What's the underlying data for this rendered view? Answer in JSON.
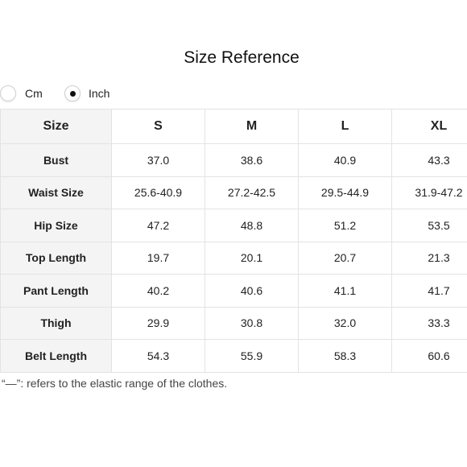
{
  "title": "Size Reference",
  "units": {
    "options": [
      {
        "label": "Cm",
        "selected": false
      },
      {
        "label": "Inch",
        "selected": true
      }
    ]
  },
  "table": {
    "corner_header": "Size",
    "sizes": [
      "S",
      "M",
      "L",
      "XL"
    ],
    "rows": [
      {
        "label": "Bust",
        "values": [
          "37.0",
          "38.6",
          "40.9",
          "43.3"
        ]
      },
      {
        "label": "Waist Size",
        "values": [
          "25.6-40.9",
          "27.2-42.5",
          "29.5-44.9",
          "31.9-47.2"
        ]
      },
      {
        "label": "Hip Size",
        "values": [
          "47.2",
          "48.8",
          "51.2",
          "53.5"
        ]
      },
      {
        "label": "Top Length",
        "values": [
          "19.7",
          "20.1",
          "20.7",
          "21.3"
        ]
      },
      {
        "label": "Pant Length",
        "values": [
          "40.2",
          "40.6",
          "41.1",
          "41.7"
        ]
      },
      {
        "label": "Thigh",
        "values": [
          "29.9",
          "30.8",
          "32.0",
          "33.3"
        ]
      },
      {
        "label": "Belt Length",
        "values": [
          "54.3",
          "55.9",
          "58.3",
          "60.6"
        ]
      }
    ]
  },
  "note": "“—”: refers to the elastic range of the clothes."
}
